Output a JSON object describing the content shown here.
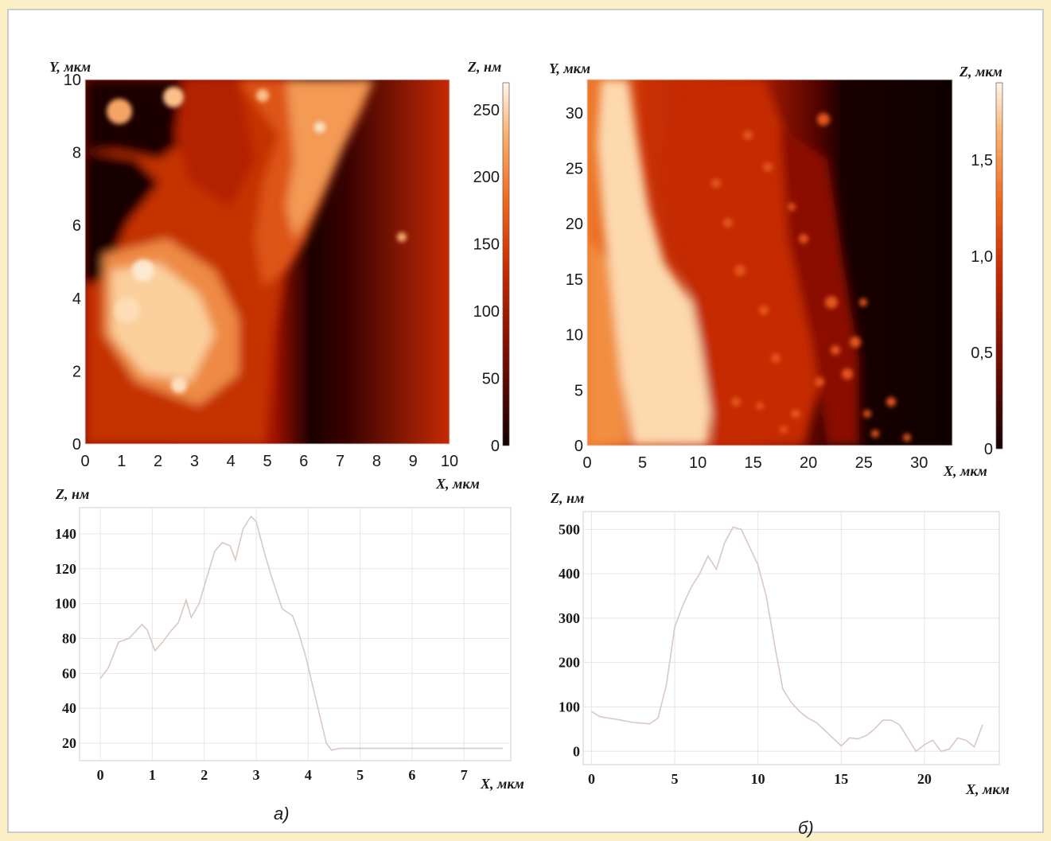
{
  "figure": {
    "panel_a_label": "а)",
    "panel_b_label": "б)"
  },
  "chart_data": [
    {
      "id": "a-map",
      "type": "heatmap",
      "xlabel": "X, мкм",
      "ylabel": "Y, мкм",
      "x_ticks": [
        "0",
        "1",
        "2",
        "3",
        "4",
        "5",
        "6",
        "7",
        "8",
        "9",
        "10"
      ],
      "y_ticks": [
        "0",
        "2",
        "4",
        "6",
        "8",
        "10"
      ],
      "xlim": [
        0,
        10
      ],
      "ylim": [
        0,
        10
      ],
      "colorbar": {
        "label": "Z, нм",
        "range": [
          0,
          270
        ],
        "ticks": [
          "0",
          "50",
          "100",
          "150",
          "200",
          "250"
        ],
        "colors": [
          "#150000",
          "#6e0a00",
          "#c82800",
          "#f36a1c",
          "#fbb070",
          "#fff6ea"
        ]
      },
      "description_values": {
        "relief_levels_nm": [
          20,
          90,
          150,
          250
        ]
      }
    },
    {
      "id": "b-map",
      "type": "heatmap",
      "xlabel": "X, мкм",
      "ylabel": "Y, мкм",
      "x_ticks": [
        "0",
        "5",
        "10",
        "15",
        "20",
        "25",
        "30"
      ],
      "y_ticks": [
        "0",
        "5",
        "10",
        "15",
        "20",
        "25",
        "30"
      ],
      "xlim": [
        0,
        33
      ],
      "ylim": [
        0,
        33
      ],
      "colorbar": {
        "label": "Z, мкм",
        "range": [
          0,
          1.9
        ],
        "ticks": [
          "0",
          "0,5",
          "1,0",
          "1,5"
        ],
        "colors": [
          "#150000",
          "#6e0a00",
          "#c82800",
          "#f36a1c",
          "#fbb070",
          "#fff6ea"
        ]
      }
    },
    {
      "id": "a-profile",
      "type": "line",
      "xlabel": "X, мкм",
      "ylabel": "Z, нм",
      "xlim": [
        -0.4,
        7.9
      ],
      "ylim": [
        10,
        155
      ],
      "x_ticks": [
        0,
        1,
        2,
        3,
        4,
        5,
        6,
        7
      ],
      "y_ticks": [
        20,
        40,
        60,
        80,
        100,
        120,
        140
      ],
      "series": [
        {
          "x": [
            0.0,
            0.15,
            0.35,
            0.55,
            0.8,
            0.9,
            1.05,
            1.2,
            1.35,
            1.5,
            1.65,
            1.75,
            1.9,
            2.05,
            2.2,
            2.35,
            2.5,
            2.6,
            2.75,
            2.9,
            3.0,
            3.15,
            3.3,
            3.5,
            3.7,
            3.8,
            3.95,
            4.15,
            4.35,
            4.45,
            4.6,
            5.0,
            5.5,
            6.0,
            6.5,
            7.0,
            7.5,
            7.75
          ],
          "y": [
            57,
            63,
            78,
            80,
            88,
            85,
            73,
            78,
            84,
            89,
            102,
            92,
            100,
            115,
            130,
            135,
            133,
            125,
            143,
            150,
            147,
            130,
            115,
            97,
            93,
            85,
            70,
            45,
            20,
            16,
            17,
            17,
            17,
            17,
            17,
            17,
            17,
            17
          ]
        }
      ]
    },
    {
      "id": "b-profile",
      "type": "line",
      "xlabel": "X, мкм",
      "ylabel": "Z, нм",
      "xlim": [
        -0.5,
        24.5
      ],
      "ylim": [
        -30,
        540
      ],
      "x_ticks": [
        0,
        5,
        10,
        15,
        20
      ],
      "y_ticks": [
        0,
        100,
        200,
        300,
        400,
        500
      ],
      "series": [
        {
          "x": [
            0.0,
            0.5,
            1.5,
            2.5,
            3.5,
            4.0,
            4.5,
            5.0,
            5.5,
            6.0,
            6.5,
            7.0,
            7.5,
            8.0,
            8.5,
            9.0,
            9.5,
            10.0,
            10.5,
            11.0,
            11.5,
            12.0,
            12.5,
            13.0,
            13.5,
            14.0,
            14.5,
            15.0,
            15.5,
            16.0,
            16.5,
            17.0,
            17.5,
            18.0,
            18.5,
            19.0,
            19.5,
            20.0,
            20.5,
            21.0,
            21.5,
            22.0,
            22.5,
            23.0,
            23.5
          ],
          "y": [
            90,
            78,
            72,
            65,
            62,
            75,
            150,
            280,
            330,
            370,
            400,
            440,
            410,
            470,
            505,
            500,
            460,
            420,
            350,
            240,
            140,
            110,
            90,
            75,
            65,
            48,
            30,
            12,
            30,
            28,
            35,
            50,
            70,
            70,
            60,
            30,
            0,
            15,
            25,
            0,
            5,
            30,
            25,
            10,
            60
          ]
        }
      ]
    }
  ]
}
